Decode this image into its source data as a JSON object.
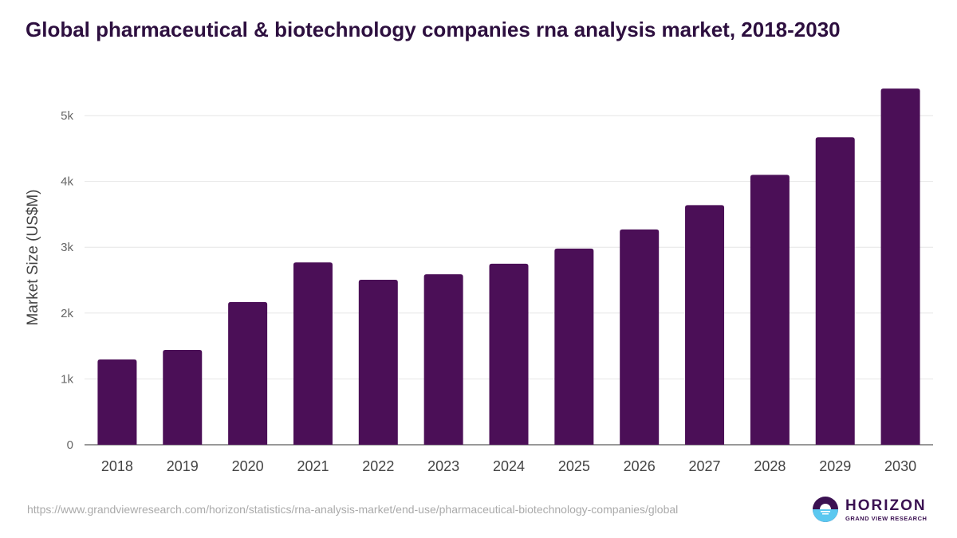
{
  "title": "Global pharmaceutical & biotechnology companies rna analysis market, 2018-2030",
  "source_url": "https://www.grandviewresearch.com/horizon/statistics/rna-analysis-market/end-use/pharmaceutical-biotechnology-companies/global",
  "logo": {
    "name": "HORIZON",
    "subtitle": "GRAND VIEW RESEARCH"
  },
  "chart_data": {
    "type": "bar",
    "title": "Global pharmaceutical & biotechnology companies rna analysis market, 2018-2030",
    "xlabel": "",
    "ylabel": "Market Size (US$M)",
    "categories": [
      "2018",
      "2019",
      "2020",
      "2021",
      "2022",
      "2023",
      "2024",
      "2025",
      "2026",
      "2027",
      "2028",
      "2029",
      "2030"
    ],
    "values": [
      1295,
      1440,
      2167,
      2770,
      2506,
      2590,
      2750,
      2980,
      3270,
      3640,
      4100,
      4670,
      5410
    ],
    "ylim": [
      0,
      5500
    ],
    "yticks": [
      0,
      1000,
      2000,
      3000,
      4000,
      5000
    ],
    "ytick_labels": [
      "0",
      "1k",
      "2k",
      "3k",
      "4k",
      "5k"
    ],
    "grid": true,
    "bar_color": "#4b0f57"
  }
}
